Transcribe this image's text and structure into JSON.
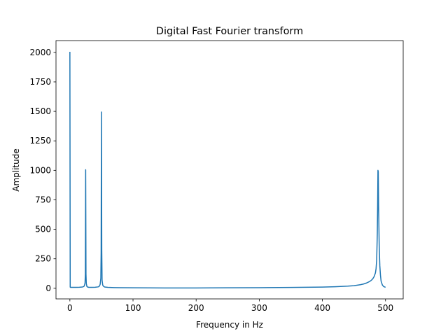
{
  "chart_data": {
    "type": "line",
    "title": "Digital Fast Fourier transform",
    "xlabel": "Frequency in Hz",
    "ylabel": "Amplitude",
    "xlim": [
      -22,
      528
    ],
    "ylim": [
      -90,
      2100
    ],
    "xticks": [
      0,
      100,
      200,
      300,
      400,
      500
    ],
    "yticks": [
      0,
      250,
      500,
      750,
      1000,
      1250,
      1500,
      1750,
      2000
    ],
    "grid": false,
    "legend": "none",
    "series": [
      {
        "color": "#1f77b4",
        "x": [
          0,
          0.5,
          1,
          2,
          5,
          10,
          15,
          20,
          22,
          23,
          24,
          24.5,
          25,
          25.5,
          26,
          27,
          28,
          30,
          35,
          40,
          45,
          47,
          48,
          49,
          49.5,
          50,
          50.5,
          51,
          52,
          53,
          55,
          60,
          70,
          80,
          100,
          150,
          200,
          250,
          300,
          350,
          400,
          420,
          440,
          450,
          460,
          465,
          470,
          475,
          478,
          480,
          482,
          484,
          485,
          486,
          487,
          487.5,
          488,
          488.5,
          489,
          490,
          491,
          492,
          493,
          495,
          497,
          500
        ],
        "y": [
          2005,
          10,
          8,
          8,
          8,
          8,
          9,
          11,
          15,
          22,
          45,
          120,
          1005,
          120,
          40,
          15,
          11,
          8,
          8,
          9,
          12,
          20,
          35,
          85,
          300,
          1495,
          320,
          70,
          28,
          18,
          11,
          8,
          6,
          5,
          4,
          3,
          3,
          4,
          5,
          7,
          10,
          13,
          18,
          22,
          30,
          36,
          45,
          58,
          70,
          82,
          100,
          130,
          165,
          240,
          470,
          700,
          1000,
          990,
          700,
          360,
          190,
          110,
          60,
          28,
          15,
          8
        ]
      }
    ]
  }
}
